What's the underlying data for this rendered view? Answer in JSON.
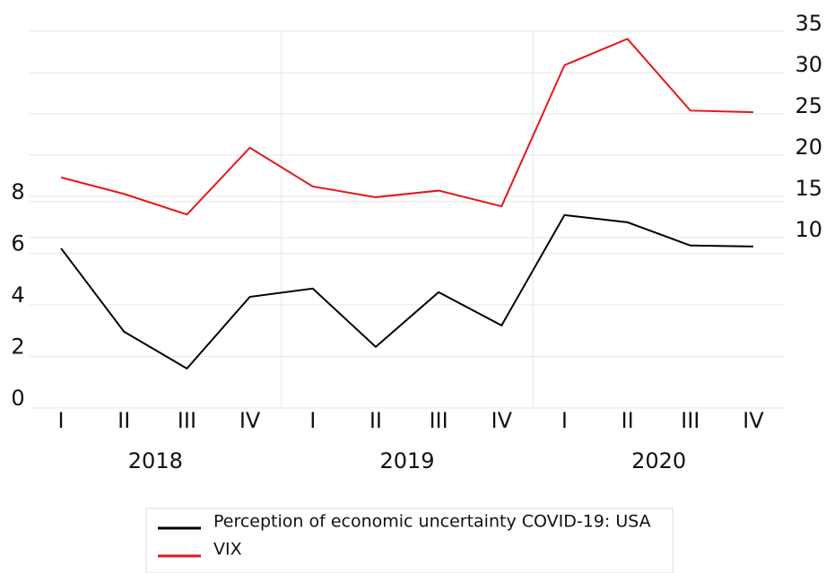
{
  "chart_data": {
    "type": "line",
    "categories": [
      "I",
      "II",
      "III",
      "IV",
      "I",
      "II",
      "III",
      "IV",
      "I",
      "II",
      "III",
      "IV"
    ],
    "groups": [
      "2018",
      "2019",
      "2020"
    ],
    "series": [
      {
        "name": "Perception of economic uncertainty COVID-19: USA",
        "color": "#000000",
        "values": [
          6.19,
          2.96,
          1.53,
          4.31,
          4.63,
          2.37,
          4.49,
          3.2,
          7.48,
          7.2,
          6.3,
          6.26
        ]
      },
      {
        "name": "VIX",
        "color": "#e8141c",
        "axis": "y2",
        "values": [
          17.3,
          15.3,
          12.8,
          20.9,
          16.2,
          14.9,
          15.7,
          13.8,
          30.9,
          34.1,
          25.4,
          25.2
        ]
      }
    ],
    "ylim": [
      0,
      14.6
    ],
    "yticks": [
      0,
      2,
      4,
      6,
      8
    ],
    "y2lim": [
      -10.65,
      35
    ],
    "y2ticks": [
      10,
      15,
      20,
      25,
      30,
      35
    ],
    "grid": true
  }
}
